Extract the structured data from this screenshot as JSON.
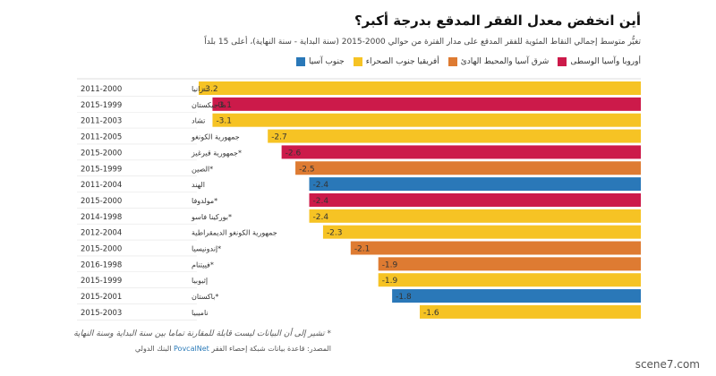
{
  "header": {
    "title": "أين انخفض معدل الفقر المدقع بدرجة أكبر؟",
    "subtitle": "تغيُّر متوسط إجمالي النقاط المئوية للفقر المدقع على مدار الفترة من حوالي 2000-2015 (سنة البداية - سنة النهاية)، أعلى 15 بلداً"
  },
  "legend": [
    {
      "label": "جنوب آسيا",
      "color": "#2a78b8"
    },
    {
      "label": "أفريقيا جنوب الصحراء",
      "color": "#f6c324"
    },
    {
      "label": "شرق آسيا والمحيط الهادئ",
      "color": "#de7b32"
    },
    {
      "label": "أوروبا وآسيا الوسطى",
      "color": "#cc1a4a"
    }
  ],
  "footer": {
    "footnote": "* تشير إلى أن البيانات ليست قابلة للمقارنة تماما بين سنة البداية وسنة النهاية",
    "source_label": "المصدر: قاعدة بيانات شبكة إحصاء الفقر",
    "source_link": "PovcalNet",
    "source_org": "البنك الدولي"
  },
  "watermark": "scene7.com",
  "chart_data": {
    "type": "bar",
    "orientation": "horizontal",
    "categories": [
      "تنزانيا",
      "طاجيكستان",
      "تشاد",
      "جمهورية الكونغو",
      "*جمهورية قيرغيز",
      "*الصين",
      "الهند",
      "*مولدوفا",
      "*بوركينا فاسو",
      "جمهورية الكونغو الديمقراطية",
      "*إندونيسيا",
      "*فييتنام",
      "إثيوبيا",
      "*باكستان",
      "ناميبيا"
    ],
    "years": [
      "2011-2000",
      "2015-1999",
      "2011-2003",
      "2011-2005",
      "2015-2000",
      "2015-1999",
      "2011-2004",
      "2015-2000",
      "2014-1998",
      "2012-2004",
      "2015-2000",
      "2016-1998",
      "2015-1999",
      "2015-2001",
      "2015-2003"
    ],
    "values": [
      -3.2,
      -3.1,
      -3.1,
      -2.7,
      -2.6,
      -2.5,
      -2.4,
      -2.4,
      -2.4,
      -2.3,
      -2.1,
      -1.9,
      -1.9,
      -1.8,
      -1.6
    ],
    "value_labels": [
      "-3.2",
      "-3.1",
      "-3.1",
      "-2.7",
      "-2.6",
      "-2.5",
      "-2.4",
      "-2.4",
      "-2.4",
      "-2.3",
      "-2.1",
      "-1.9",
      "-1.9",
      "-1.8",
      "-1.6"
    ],
    "regions": [
      "أفريقيا جنوب الصحراء",
      "أوروبا وآسيا الوسطى",
      "أفريقيا جنوب الصحراء",
      "أفريقيا جنوب الصحراء",
      "أوروبا وآسيا الوسطى",
      "شرق آسيا والمحيط الهادئ",
      "جنوب آسيا",
      "أوروبا وآسيا الوسطى",
      "أفريقيا جنوب الصحراء",
      "أفريقيا جنوب الصحراء",
      "شرق آسيا والمحيط الهادئ",
      "شرق آسيا والمحيط الهادئ",
      "أفريقيا جنوب الصحراء",
      "جنوب آسيا",
      "أفريقيا جنوب الصحراء"
    ],
    "xlim": [
      -3.2,
      0
    ],
    "grid": false
  }
}
